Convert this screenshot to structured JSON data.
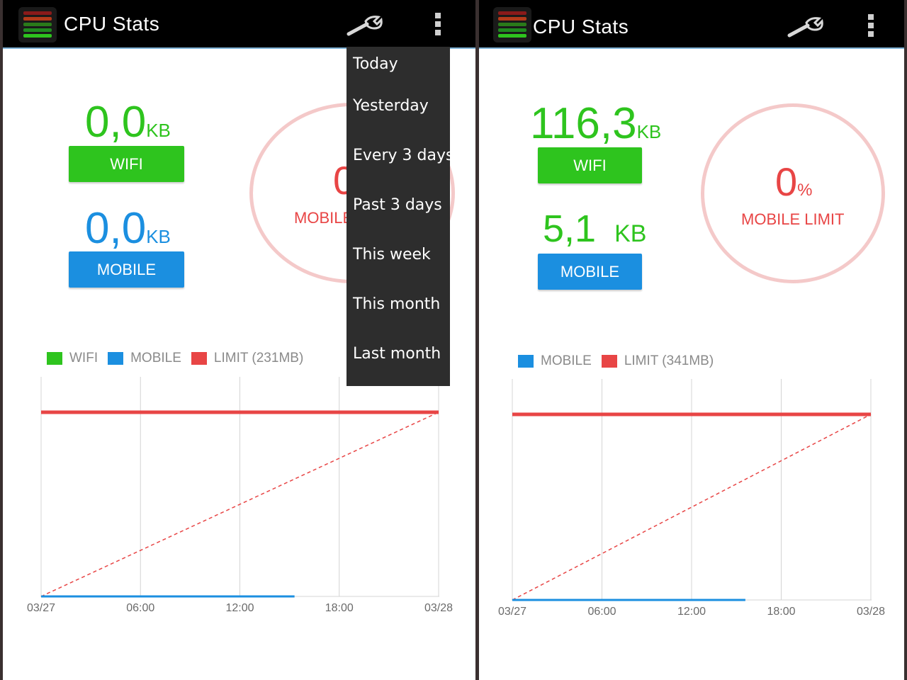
{
  "colors": {
    "wifi": "#2ec41e",
    "mobile": "#1b8fe0",
    "limit": "#e84545",
    "actionbar": "#000000"
  },
  "left": {
    "app_title": "CPU Stats",
    "wifi": {
      "value": "0,0",
      "unit": "KB",
      "label": "WIFI"
    },
    "mobile": {
      "value": "0,0",
      "unit": "KB",
      "label": "MOBILE"
    },
    "circle": {
      "percent": "0",
      "label": "MOBILE LIMIT"
    },
    "legend": [
      "WIFI",
      "MOBILE",
      "LIMIT (231MB)"
    ],
    "menu_items": [
      "Today",
      "Yesterday",
      "Every 3 days",
      "Past 3 days",
      "This week",
      "This month",
      "Last month"
    ]
  },
  "right": {
    "app_title": "CPU Stats",
    "wifi": {
      "value": "116,3",
      "unit": "KB",
      "label": "WIFI"
    },
    "mobile": {
      "value": "5,1",
      "unit": "KB",
      "label": "MOBILE"
    },
    "circle": {
      "percent": "0",
      "unit": "%",
      "label": "MOBILE LIMIT"
    },
    "legend": [
      "MOBILE",
      "LIMIT (341MB)"
    ]
  },
  "chart_data": [
    {
      "type": "line",
      "x_ticks": [
        "03/27",
        "06:00",
        "12:00",
        "18:00",
        "03/28"
      ],
      "x_range_hours": [
        0,
        24
      ],
      "limit_mb": 231,
      "series": [
        {
          "name": "WIFI",
          "color": "#2ec41e"
        },
        {
          "name": "MOBILE",
          "color": "#1b8fe0",
          "points": [
            [
              0,
              0
            ],
            [
              15.3,
              0
            ]
          ]
        },
        {
          "name": "LIMIT (231MB)",
          "color": "#e84545",
          "points": [
            [
              0,
              1
            ],
            [
              24,
              1
            ]
          ]
        }
      ],
      "projection_dashed": [
        [
          0,
          0
        ],
        [
          24,
          1
        ]
      ]
    },
    {
      "type": "line",
      "x_ticks": [
        "03/27",
        "06:00",
        "12:00",
        "18:00",
        "03/28"
      ],
      "x_range_hours": [
        0,
        24
      ],
      "limit_mb": 341,
      "series": [
        {
          "name": "MOBILE",
          "color": "#1b8fe0",
          "points": [
            [
              0,
              0
            ],
            [
              15.6,
              0
            ]
          ]
        },
        {
          "name": "LIMIT (341MB)",
          "color": "#e84545",
          "points": [
            [
              0,
              1
            ],
            [
              24,
              1
            ]
          ]
        }
      ],
      "projection_dashed": [
        [
          0,
          0
        ],
        [
          24,
          1
        ]
      ]
    }
  ]
}
